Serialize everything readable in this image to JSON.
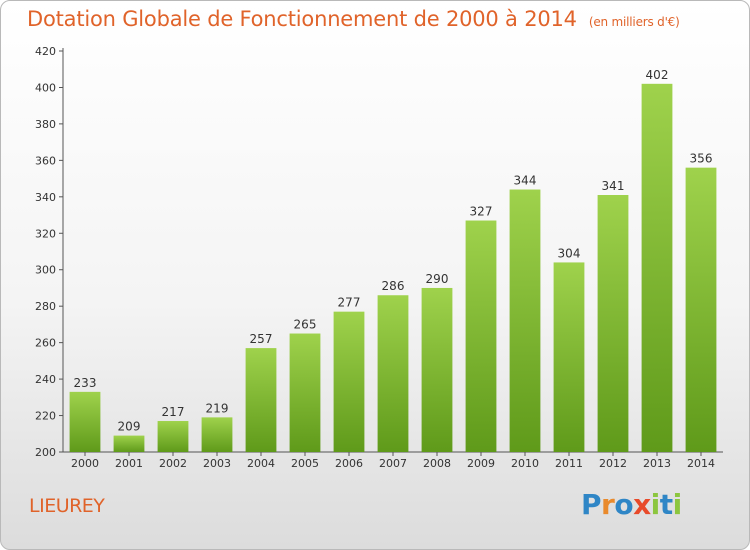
{
  "title": "Dotation Globale de Fonctionnement de 2000 à 2014",
  "unit": "(en milliers d'€)",
  "commune": "LIEUREY",
  "logo": {
    "text": "Proxiti",
    "letters": [
      {
        "ch": "P",
        "color": "#2f86c6"
      },
      {
        "ch": "r",
        "color": "#e98a2c"
      },
      {
        "ch": "o",
        "color": "#2f86c6"
      },
      {
        "ch": "x",
        "color": "#e84a2a"
      },
      {
        "ch": "i",
        "color": "#8cc63f"
      },
      {
        "ch": "t",
        "color": "#2f86c6"
      },
      {
        "ch": "i",
        "color": "#8cc63f"
      }
    ]
  },
  "colors": {
    "accent": "#e0632a",
    "bar_top": "#9fd24c",
    "bar_bottom": "#5f9a1a"
  },
  "chart_data": {
    "type": "bar",
    "categories": [
      "2000",
      "2001",
      "2002",
      "2003",
      "2004",
      "2005",
      "2006",
      "2007",
      "2008",
      "2009",
      "2010",
      "2011",
      "2012",
      "2013",
      "2014"
    ],
    "values": [
      233,
      209,
      217,
      219,
      257,
      265,
      277,
      286,
      290,
      327,
      344,
      304,
      341,
      402,
      356
    ],
    "ylim": [
      200,
      420
    ],
    "yticks": [
      200,
      220,
      240,
      260,
      280,
      300,
      320,
      340,
      360,
      380,
      400,
      420
    ],
    "grid": false,
    "data_labels": true
  }
}
